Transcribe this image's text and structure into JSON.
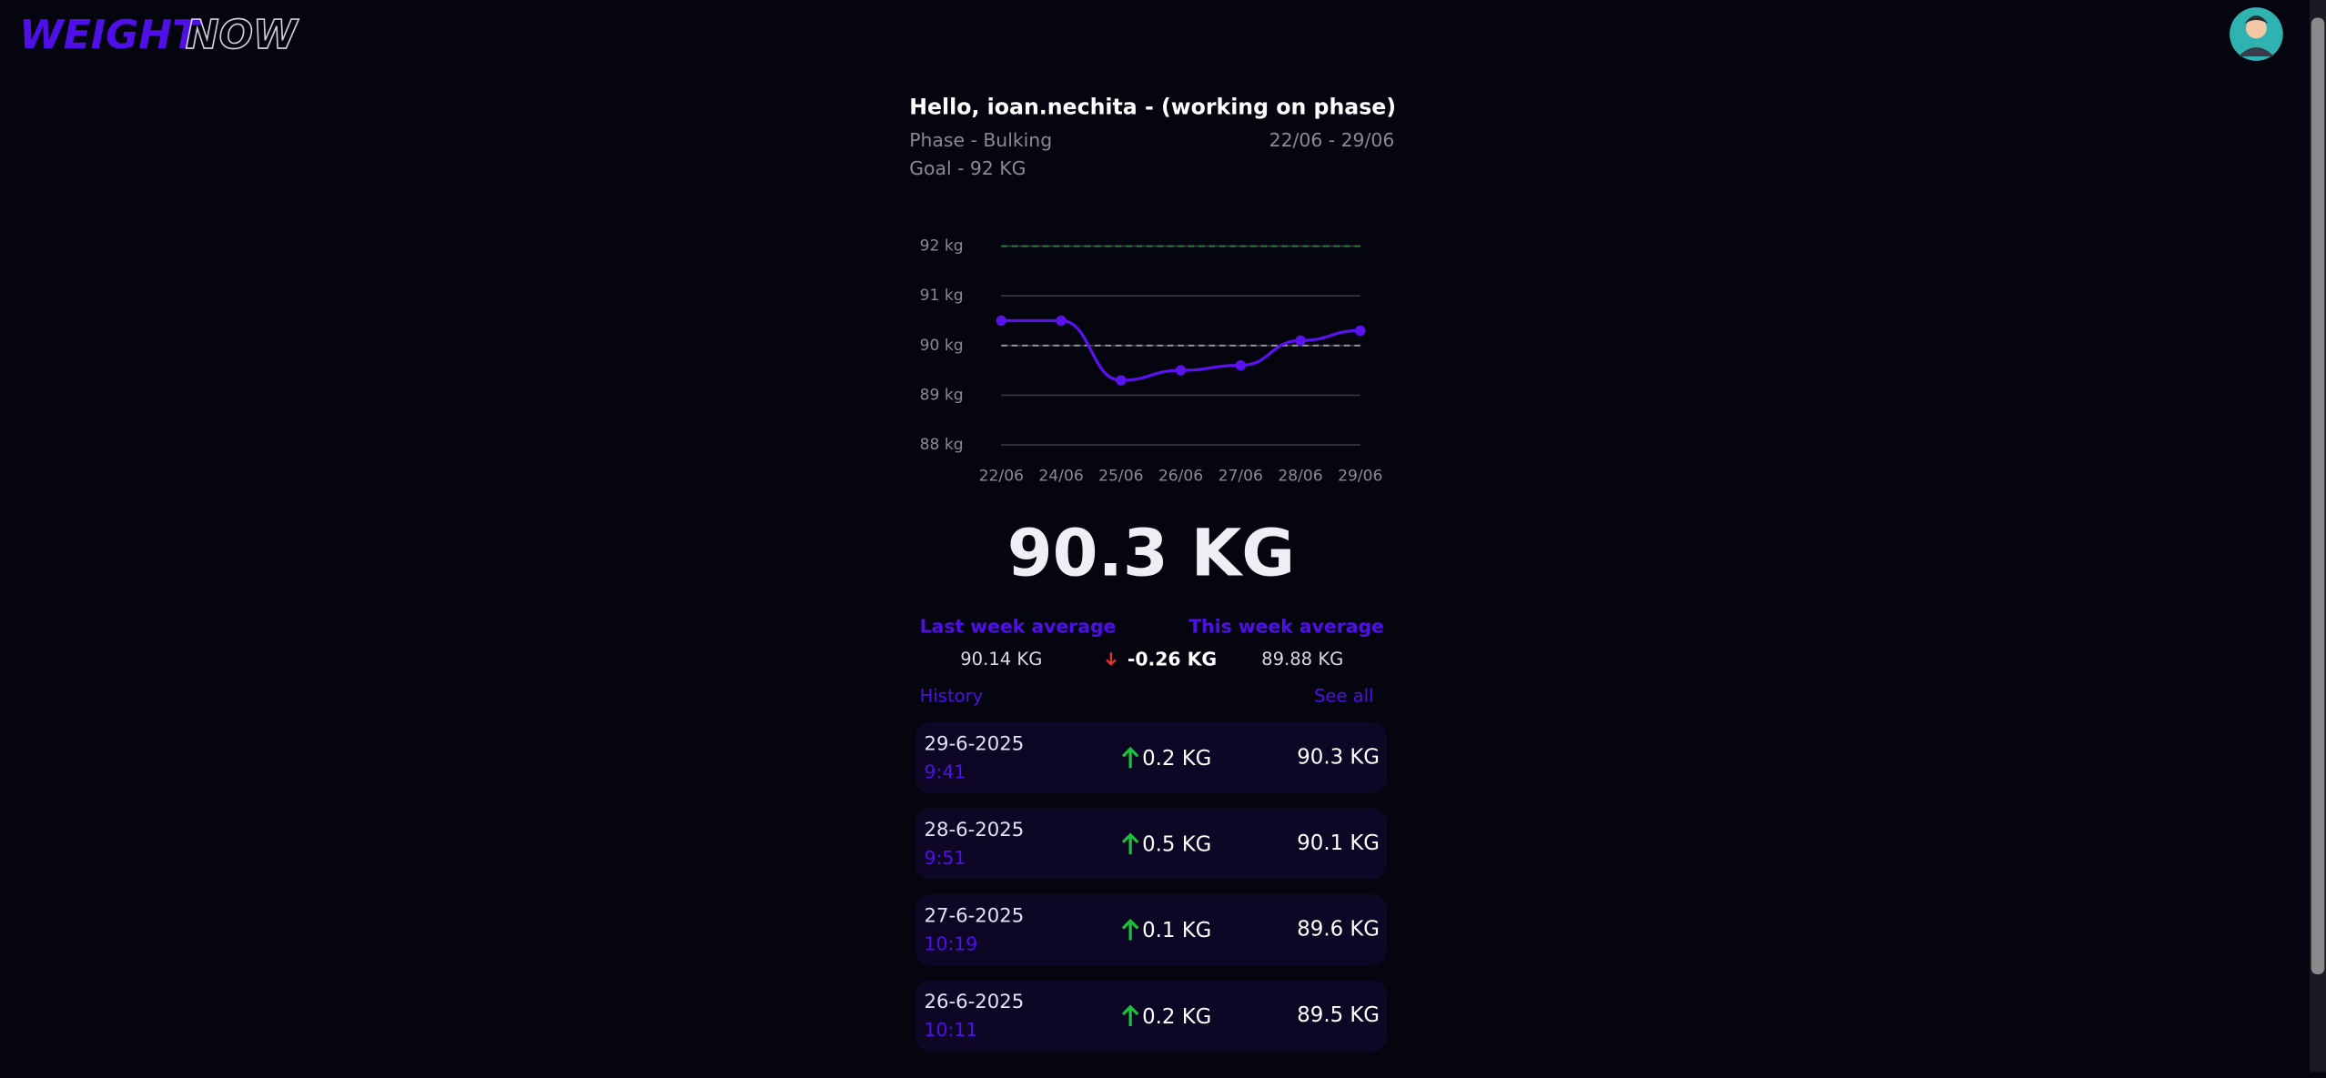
{
  "header": {
    "logo_left": "WEIGHT",
    "logo_right": "NOW"
  },
  "greeting": "Hello, ioan.nechita - (working on phase)",
  "phase": "Phase - Bulking",
  "date_range": "22/06 - 29/06",
  "goal": "Goal - 92 KG",
  "chart_data": {
    "type": "line",
    "categories": [
      "22/06",
      "24/06",
      "25/06",
      "26/06",
      "27/06",
      "28/06",
      "29/06"
    ],
    "series": [
      {
        "color": "#5a12ee",
        "values": [
          90.5,
          90.5,
          89.3,
          89.5,
          89.6,
          90.1,
          90.3
        ]
      }
    ],
    "ylim": [
      88,
      92
    ],
    "yticks": [
      {
        "value": 88,
        "label": "88 kg"
      },
      {
        "value": 89,
        "label": "89 kg"
      },
      {
        "value": 90,
        "label": "90 kg"
      },
      {
        "value": 91,
        "label": "91 kg"
      },
      {
        "value": 92,
        "label": "92 kg"
      }
    ],
    "grid": true,
    "reference_lines": [
      {
        "value": 92,
        "color": "#2f7a3a"
      },
      {
        "value": 90,
        "color": "#9a9aa6"
      }
    ]
  },
  "current_weight": "90.3 KG",
  "averages": {
    "last_label": "Last week average",
    "this_label": "This week average",
    "last_value": "90.14 KG",
    "difference": "-0.26 KG",
    "this_value": "89.88 KG"
  },
  "history": {
    "title": "History",
    "link": "See all",
    "rows": [
      {
        "date": "29-6-2025",
        "time": "9:41",
        "change": "0.2 KG",
        "weight": "90.3 KG"
      },
      {
        "date": "28-6-2025",
        "time": "9:51",
        "change": "0.5 KG",
        "weight": "90.1 KG"
      },
      {
        "date": "27-6-2025",
        "time": "10:19",
        "change": "0.1 KG",
        "weight": "89.6 KG"
      },
      {
        "date": "26-6-2025",
        "time": "10:11",
        "change": "0.2 KG",
        "weight": "89.5 KG"
      }
    ]
  }
}
